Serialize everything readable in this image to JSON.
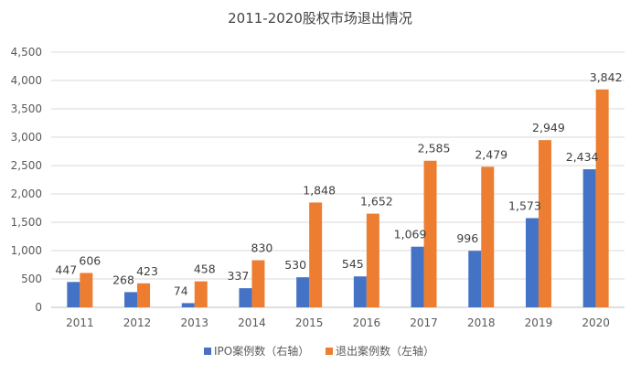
{
  "chart_data": {
    "type": "bar",
    "title": "2011-2020股权市场退出情况",
    "categories": [
      "2011",
      "2012",
      "2013",
      "2014",
      "2015",
      "2016",
      "2017",
      "2018",
      "2019",
      "2020"
    ],
    "series": [
      {
        "name": "IPO案例数（右轴）",
        "color": "#4472C4",
        "values": [
          447,
          268,
          74,
          337,
          530,
          545,
          1069,
          996,
          1573,
          2434
        ],
        "labels": [
          "447",
          "268",
          "74",
          "337",
          "530",
          "545",
          "1,069",
          "996",
          "1,573",
          "2,434"
        ]
      },
      {
        "name": "退出案例数（左轴）",
        "color": "#ED7D31",
        "values": [
          606,
          423,
          458,
          830,
          1848,
          1652,
          2585,
          2479,
          2949,
          3842
        ],
        "labels": [
          "606",
          "423",
          "458",
          "830",
          "1,848",
          "1,652",
          "2,585",
          "2,479",
          "2,949",
          "3,842"
        ]
      }
    ],
    "ylim": [
      0,
      4500
    ],
    "yticks": [
      "0",
      "500",
      "1,000",
      "1,500",
      "2,000",
      "2,500",
      "3,000",
      "3,500",
      "4,000",
      "4,500"
    ],
    "xlabel": "",
    "ylabel": "",
    "legend": "bottom"
  }
}
